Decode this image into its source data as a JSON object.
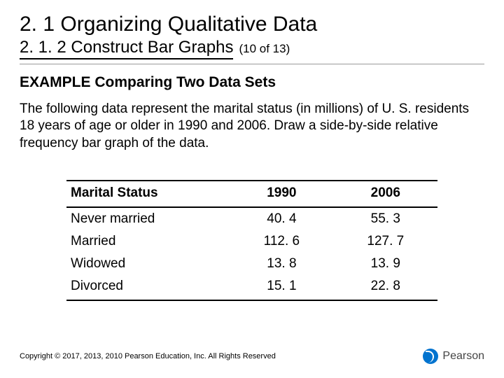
{
  "section_title": "2. 1 Organizing Qualitative Data",
  "subsection_title": "2. 1. 2 Construct Bar Graphs",
  "page_count": "(10 of 13)",
  "example_title": "EXAMPLE Comparing Two Data Sets",
  "body_text": "The following data represent the marital status (in millions) of U. S. residents 18 years of age or older in 1990 and 2006. Draw a side-by-side relative frequency bar graph of the data.",
  "table": {
    "columns": [
      "Marital Status",
      "1990",
      "2006"
    ],
    "rows": [
      [
        "Never married",
        "40. 4",
        "55. 3"
      ],
      [
        "Married",
        "112. 6",
        "127. 7"
      ],
      [
        "Widowed",
        "13. 8",
        "13. 9"
      ],
      [
        "Divorced",
        "15. 1",
        "22. 8"
      ]
    ],
    "col_widths": [
      "44%",
      "28%",
      "28%"
    ]
  },
  "copyright": "Copyright © 2017, 2013, 2010 Pearson Education, Inc. All Rights Reserved",
  "brand_name": "Pearson"
}
